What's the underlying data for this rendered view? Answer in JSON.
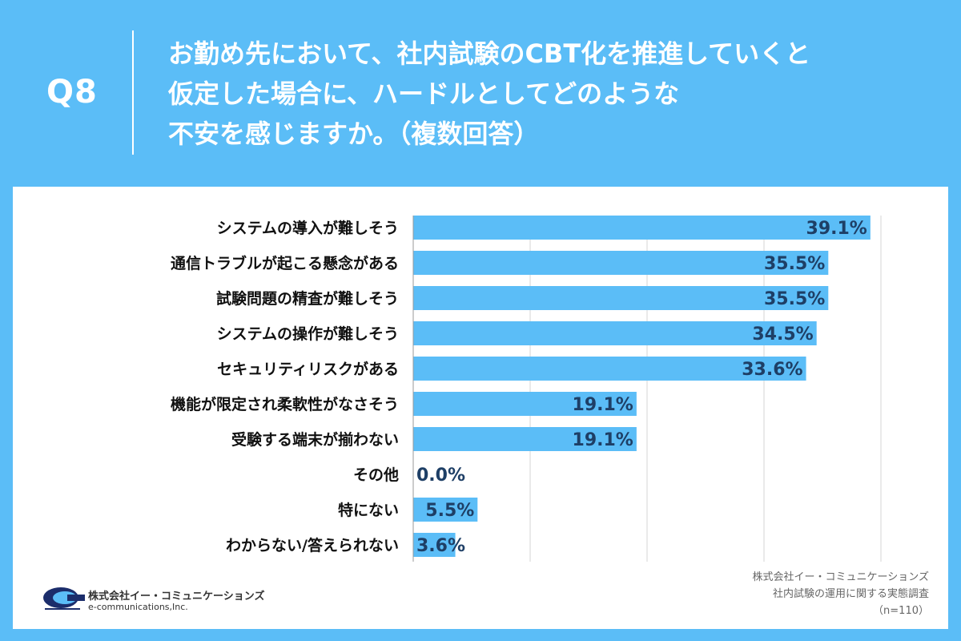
{
  "question": {
    "label": "Q8",
    "lines": [
      "お勤め先において、社内試験のCBT化を推進していくと",
      "仮定した場合に、ハードルとしてどのような",
      "不安を感じますか。（複数回答）"
    ]
  },
  "colors": {
    "background": "#5bbdf7",
    "bar": "#5bbdf7",
    "value_text": "#1e3f66",
    "label_text": "#111111",
    "grid": "#d4d4d4",
    "axis": "#999999"
  },
  "chart_data": {
    "type": "bar",
    "orientation": "horizontal",
    "categories": [
      "システムの導入が難しそう",
      "通信トラブルが起こる懸念がある",
      "試験問題の精査が難しそう",
      "システムの操作が難しそう",
      "セキュリティリスクがある",
      "機能が限定され柔軟性がなさそう",
      "受験する端末が揃わない",
      "その他",
      "特にない",
      "わからない/答えられない"
    ],
    "values": [
      39.1,
      35.5,
      35.5,
      34.5,
      33.6,
      19.1,
      19.1,
      0.0,
      5.5,
      3.6
    ],
    "value_labels": [
      "39.1%",
      "35.5%",
      "35.5%",
      "34.5%",
      "33.6%",
      "19.1%",
      "19.1%",
      "0.0%",
      "5.5%",
      "3.6%"
    ],
    "xlim": [
      0,
      40
    ],
    "grid": true
  },
  "logo": {
    "company_jp": "株式会社イー・コミュニケーションズ",
    "company_en": "e-communications,Inc."
  },
  "source": {
    "line1": "株式会社イー・コミュニケーションズ",
    "line2": "社内試験の運用に関する実態調査",
    "line3": "（n=110）"
  }
}
